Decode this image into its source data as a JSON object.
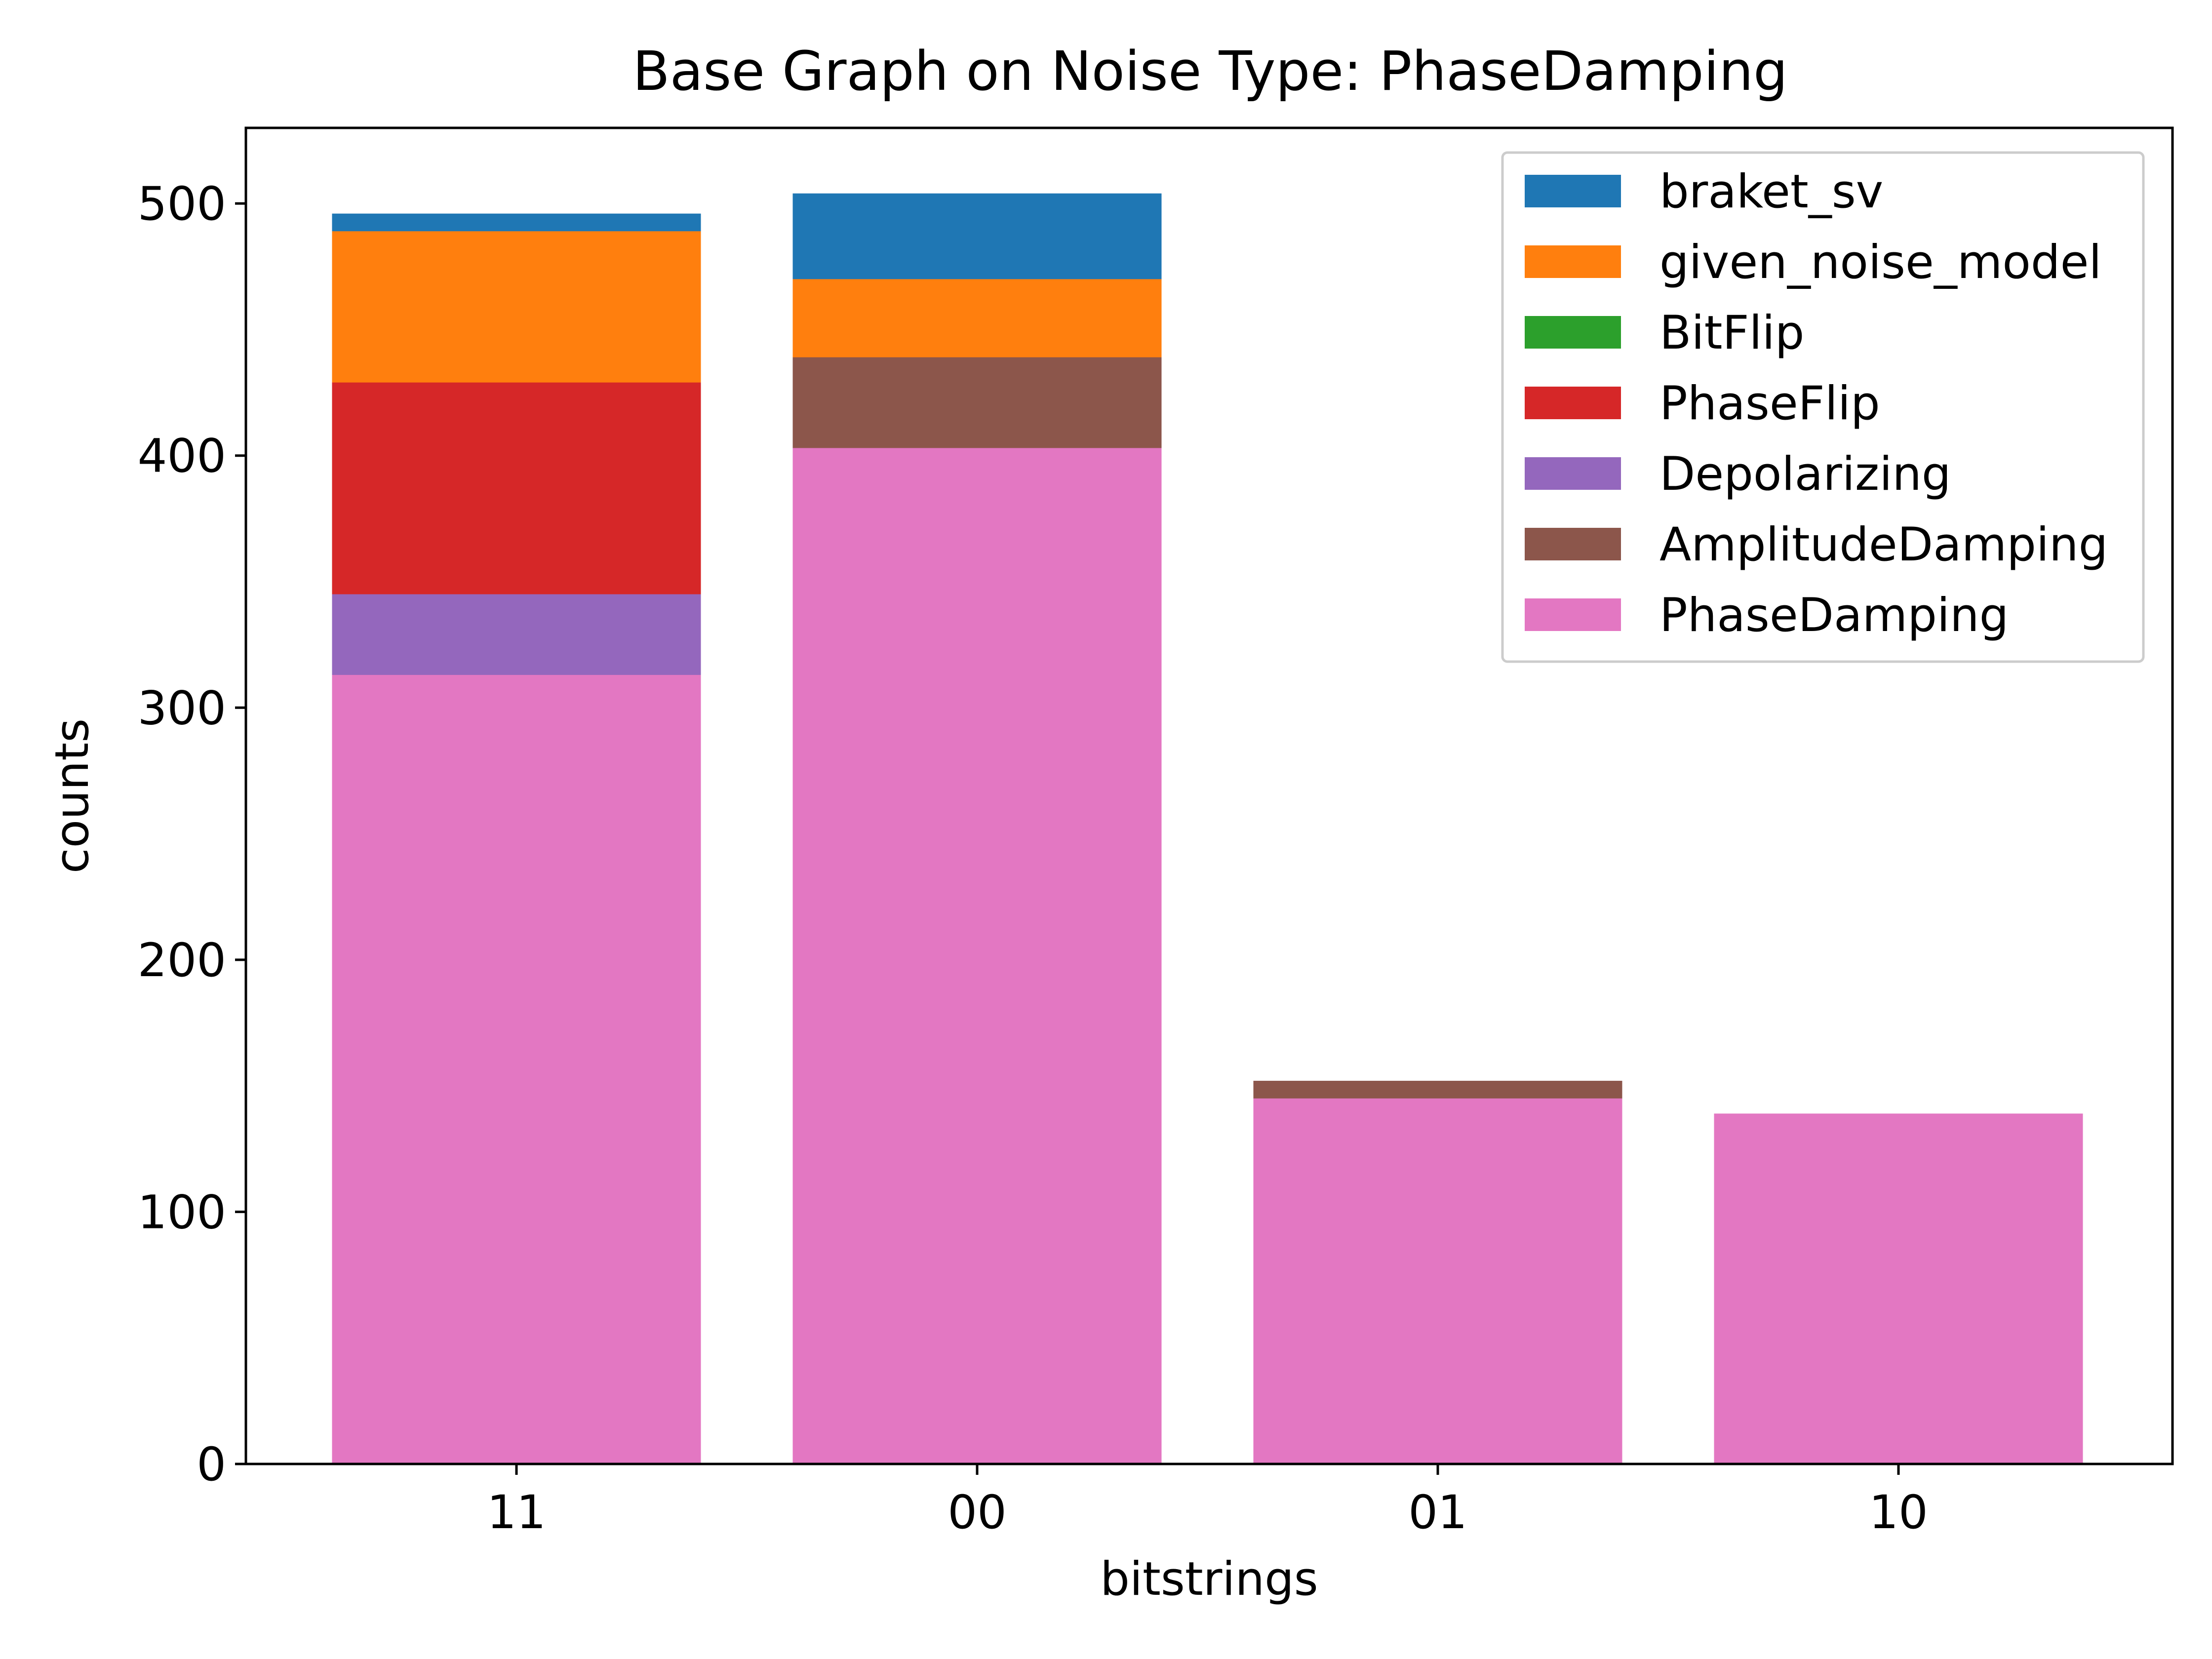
{
  "chart_data": {
    "type": "bar",
    "title": "Base Graph on Noise Type: PhaseDamping",
    "xlabel": "bitstrings",
    "ylabel": "counts",
    "categories": [
      "11",
      "00",
      "01",
      "10"
    ],
    "ylim": [
      0,
      530
    ],
    "yticks": [
      0,
      100,
      200,
      300,
      400,
      500
    ],
    "overlaid_bars": true,
    "grid": false,
    "legend_position": "top-right",
    "series": [
      {
        "name": "braket_sv",
        "color": "#1f77b4",
        "values": [
          496,
          504,
          null,
          null
        ]
      },
      {
        "name": "given_noise_model",
        "color": "#ff7f0e",
        "values": [
          489,
          470,
          null,
          null
        ]
      },
      {
        "name": "BitFlip",
        "color": "#2ca02c",
        "values": [
          null,
          null,
          null,
          null
        ]
      },
      {
        "name": "PhaseFlip",
        "color": "#d62728",
        "values": [
          429,
          null,
          null,
          null
        ]
      },
      {
        "name": "Depolarizing",
        "color": "#9467bd",
        "values": [
          345,
          null,
          null,
          null
        ]
      },
      {
        "name": "AmplitudeDamping",
        "color": "#8c564b",
        "values": [
          null,
          439,
          152,
          null
        ]
      },
      {
        "name": "PhaseDamping",
        "color": "#e377c2",
        "values": [
          313,
          403,
          145,
          139
        ]
      }
    ]
  }
}
